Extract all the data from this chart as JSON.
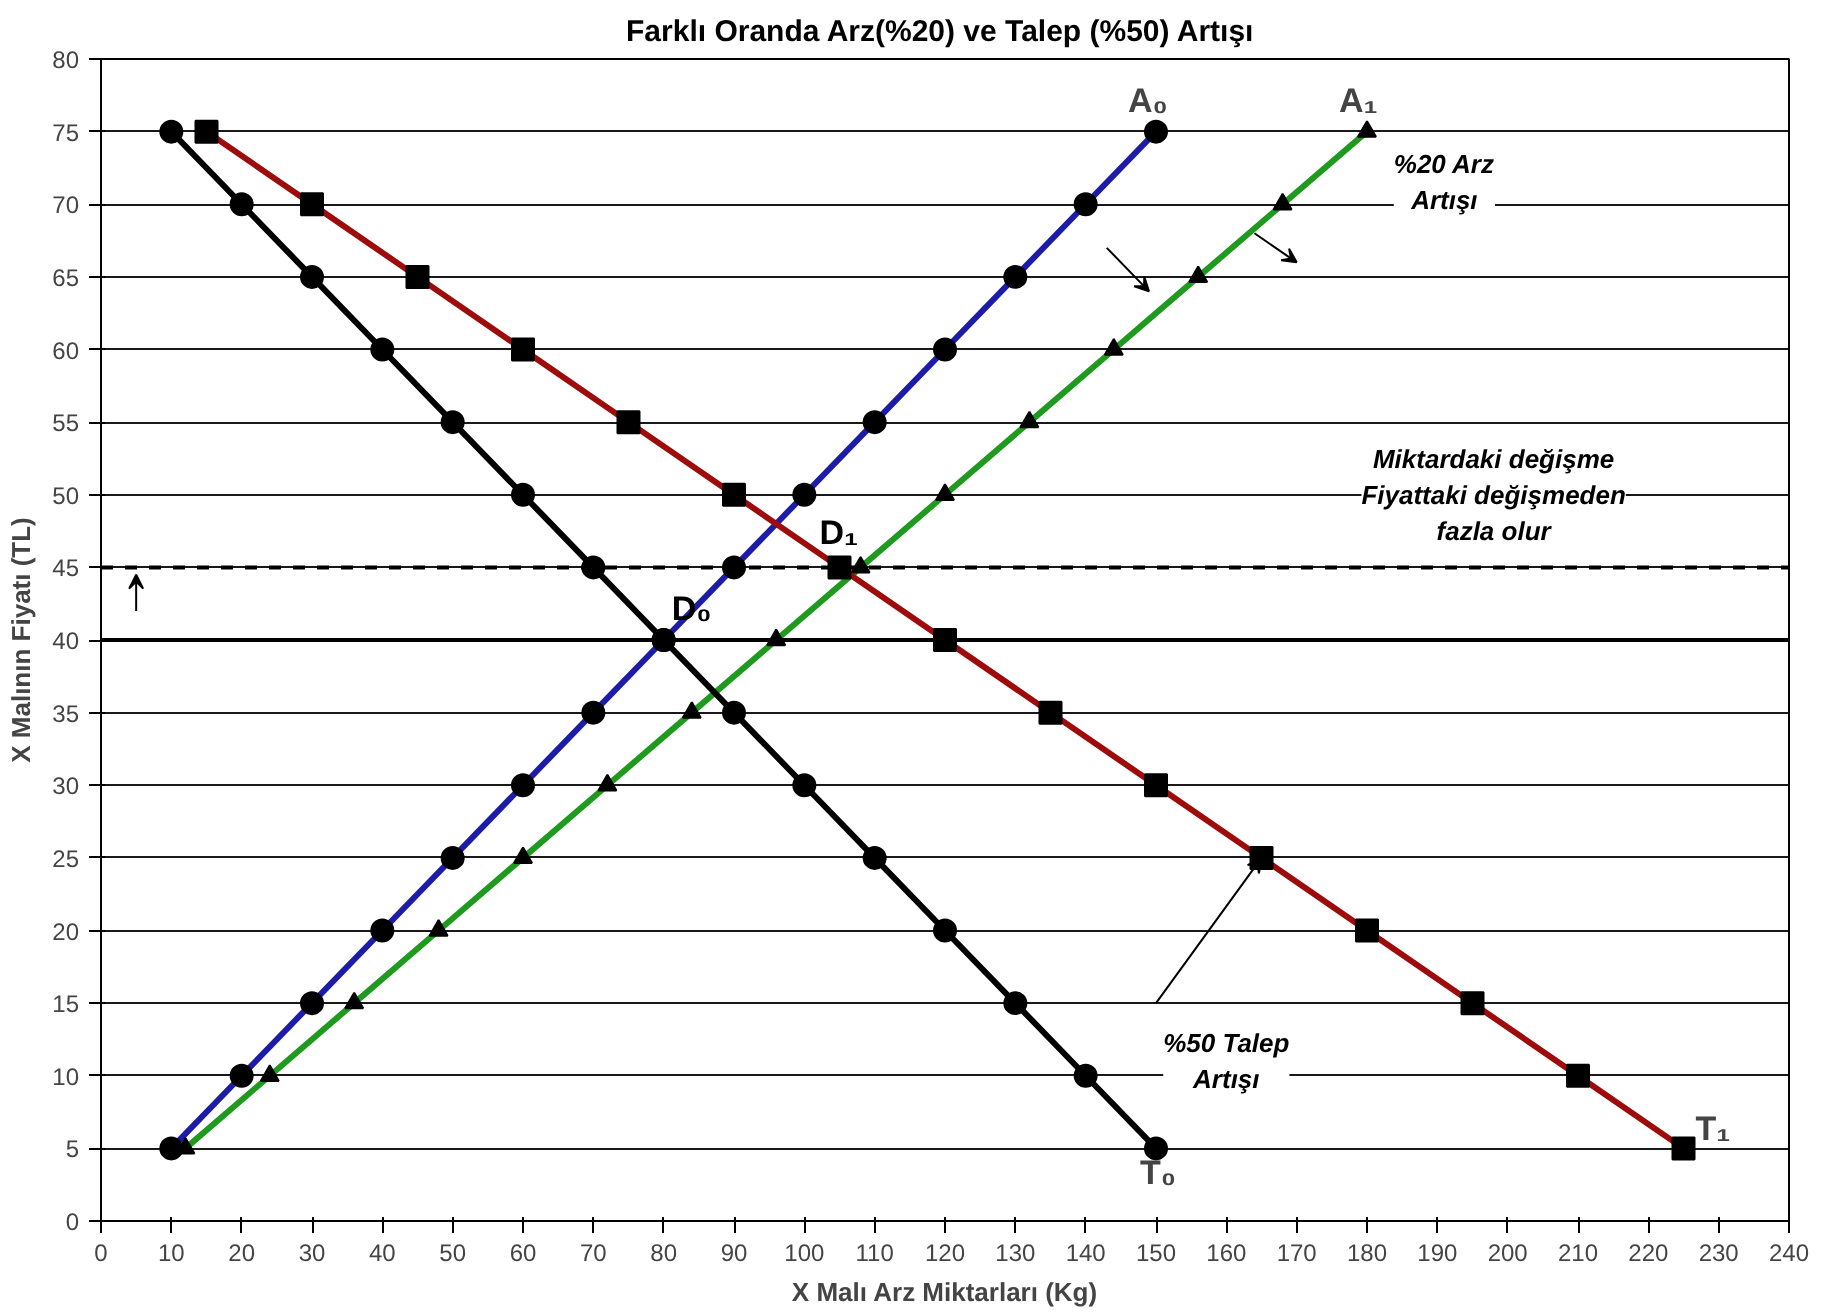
{
  "chart_data": {
    "type": "line",
    "title": "Farklı Oranda Arz(%20)  ve Talep (%50) Artışı",
    "xlabel": "X Malı Arz Miktarları (Kg)",
    "ylabel": "X Malının Fiyatı (TL)",
    "xlim": [
      0,
      240
    ],
    "ylim": [
      0,
      80
    ],
    "xticks": [
      0,
      10,
      20,
      30,
      40,
      50,
      60,
      70,
      80,
      90,
      100,
      110,
      120,
      130,
      140,
      150,
      160,
      170,
      180,
      190,
      200,
      210,
      220,
      230,
      240
    ],
    "yticks": [
      0,
      5,
      10,
      15,
      20,
      25,
      30,
      35,
      40,
      45,
      50,
      55,
      60,
      65,
      70,
      75,
      80
    ],
    "grid": "y",
    "line_style": "solid",
    "series": [
      {
        "name": "A₀",
        "color": "#1c1ca8",
        "marker": "circle",
        "x": [
          10,
          20,
          30,
          40,
          50,
          60,
          70,
          80,
          90,
          100,
          110,
          120,
          130,
          140,
          150
        ],
        "values": [
          5,
          10,
          15,
          20,
          25,
          30,
          35,
          40,
          45,
          50,
          55,
          60,
          65,
          70,
          75
        ]
      },
      {
        "name": "A₁",
        "color": "#1e9a1e",
        "marker": "triangle",
        "x": [
          12,
          24,
          36,
          48,
          60,
          72,
          84,
          96,
          108,
          120,
          132,
          144,
          156,
          168,
          180
        ],
        "values": [
          5,
          10,
          15,
          20,
          25,
          30,
          35,
          40,
          45,
          50,
          55,
          60,
          65,
          70,
          75
        ]
      },
      {
        "name": "T₀",
        "color": "#000000",
        "marker": "circle",
        "x": [
          10,
          20,
          30,
          40,
          50,
          60,
          70,
          80,
          90,
          100,
          110,
          120,
          130,
          140,
          150
        ],
        "values": [
          75,
          70,
          65,
          60,
          55,
          50,
          45,
          40,
          35,
          30,
          25,
          20,
          15,
          10,
          5
        ]
      },
      {
        "name": "T₁",
        "color": "#9e0b0b",
        "marker": "square",
        "x": [
          15,
          30,
          45,
          60,
          75,
          90,
          105,
          120,
          135,
          150,
          165,
          180,
          195,
          210,
          225
        ],
        "values": [
          75,
          70,
          65,
          60,
          55,
          50,
          45,
          40,
          35,
          30,
          25,
          20,
          15,
          10,
          5
        ]
      }
    ],
    "ref_lines": [
      {
        "axis": "y",
        "value": 45,
        "label": null,
        "color": "#000000",
        "line_style": "dashed"
      },
      {
        "axis": "y",
        "value": 40,
        "label": null,
        "color": "#000000",
        "line_style": "solid"
      }
    ],
    "annotations": [
      {
        "text": "D₀",
        "x": 80,
        "y": 40
      },
      {
        "text": "D₁",
        "x": 106.7,
        "y": 44.4
      },
      "%20 Arz\nArtışı",
      "Miktardaki değişme\nFiyattaki değişmeden\nfazla olur",
      {
        "text": "%50 Talep\nArtışı",
        "x": 165,
        "y": 25
      }
    ]
  }
}
